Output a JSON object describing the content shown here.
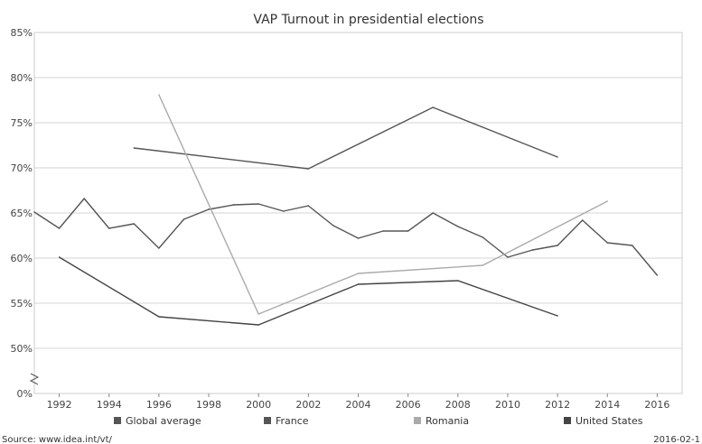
{
  "chart_data": {
    "type": "line",
    "title": "VAP Turnout in presidential elections",
    "xlabel": "",
    "ylabel": "",
    "x_ticks": [
      1992,
      1994,
      1996,
      1998,
      2000,
      2002,
      2004,
      2006,
      2008,
      2010,
      2012,
      2014,
      2016
    ],
    "y_ticks": [
      "0%",
      "50%",
      "55%",
      "60%",
      "65%",
      "70%",
      "75%",
      "80%",
      "85%"
    ],
    "xlim": [
      1991,
      2017
    ],
    "ylim": [
      50,
      85
    ],
    "axis_break": true,
    "grid": "horizontal",
    "legend_position": "bottom",
    "series": [
      {
        "name": "Global average",
        "color": "#555555",
        "points": [
          [
            1991,
            65.1
          ],
          [
            1992,
            63.3
          ],
          [
            1993,
            66.6
          ],
          [
            1994,
            63.3
          ],
          [
            1995,
            63.8
          ],
          [
            1996,
            61.1
          ],
          [
            1997,
            64.3
          ],
          [
            1998,
            65.4
          ],
          [
            1999,
            65.9
          ],
          [
            2000,
            66.0
          ],
          [
            2001,
            65.2
          ],
          [
            2002,
            65.8
          ],
          [
            2003,
            63.6
          ],
          [
            2004,
            62.2
          ],
          [
            2005,
            63.0
          ],
          [
            2006,
            63.0
          ],
          [
            2007,
            65.0
          ],
          [
            2008,
            63.5
          ],
          [
            2009,
            62.3
          ],
          [
            2010,
            60.1
          ],
          [
            2011,
            60.9
          ],
          [
            2012,
            61.4
          ],
          [
            2013,
            64.2
          ],
          [
            2014,
            61.7
          ],
          [
            2015,
            61.4
          ],
          [
            2016,
            58.1
          ]
        ]
      },
      {
        "name": "France",
        "color": "#555555",
        "points": [
          [
            1995,
            72.2
          ],
          [
            2002,
            69.9
          ],
          [
            2007,
            76.7
          ],
          [
            2012,
            71.2
          ]
        ]
      },
      {
        "name": "Romania",
        "color": "#aaaaaa",
        "points": [
          [
            1996,
            78.1
          ],
          [
            2000,
            53.8
          ],
          [
            2004,
            58.3
          ],
          [
            2009,
            59.2
          ],
          [
            2014,
            66.3
          ]
        ]
      },
      {
        "name": "United States",
        "color": "#444444",
        "points": [
          [
            1992,
            60.1
          ],
          [
            1996,
            53.5
          ],
          [
            2000,
            52.6
          ],
          [
            2004,
            57.1
          ],
          [
            2008,
            57.5
          ],
          [
            2012,
            53.6
          ]
        ]
      }
    ]
  },
  "footer": {
    "source": "Source: www.idea.int/vt/",
    "date": "2016-02-1"
  }
}
